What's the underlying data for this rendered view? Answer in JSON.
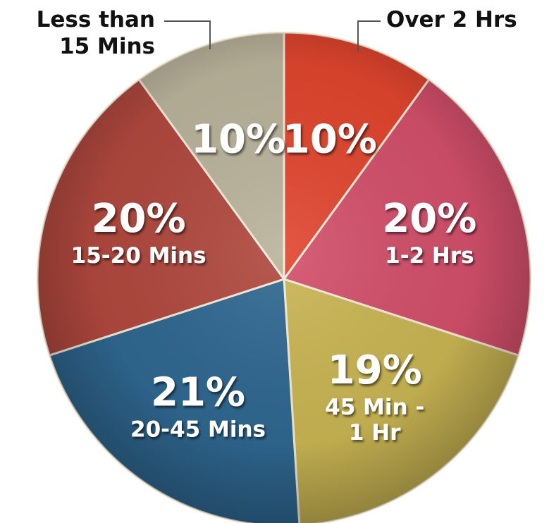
{
  "chart_data": {
    "type": "pie",
    "start_angle_deg": 0,
    "direction": "clockwise",
    "slices": [
      {
        "label": "Over 2 Hrs",
        "value": 10,
        "value_label": "10%",
        "color": "#e0452e",
        "label_position": "outside"
      },
      {
        "label": "1-2 Hrs",
        "value": 20,
        "value_label": "20%",
        "color": "#d24f6a",
        "label_position": "inside"
      },
      {
        "label": "45 Min -\n1 Hr",
        "value": 19,
        "value_label": "19%",
        "color": "#c9b553",
        "label_position": "inside"
      },
      {
        "label": "20-45 Mins",
        "value": 21,
        "value_label": "21%",
        "color": "#2f6790",
        "label_position": "inside"
      },
      {
        "label": "15-20 Mins",
        "value": 20,
        "value_label": "20%",
        "color": "#b0483e",
        "label_position": "inside"
      },
      {
        "label": "Less than\n15 Mins",
        "value": 10,
        "value_label": "10%",
        "color": "#b9b39b",
        "label_position": "outside"
      }
    ]
  }
}
